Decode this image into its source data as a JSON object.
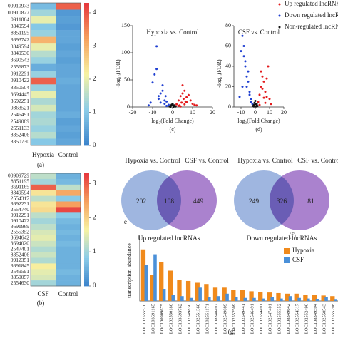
{
  "chart_data": [
    {
      "type": "heatmap",
      "caption": "(a)",
      "rows": [
        "00910973",
        "00910827",
        "0911864",
        "8349594",
        "8351195",
        "3693742",
        "8349594",
        "8349530",
        "3690543",
        "2556873",
        "0912291",
        "0910422",
        "8350504",
        "3694445",
        "3692251",
        "0363521",
        "2546491",
        "2549089",
        "2551133",
        "8352406",
        "8350730"
      ],
      "columns": [
        "Hypoxia",
        "Control"
      ],
      "values": [
        [
          0.8,
          3.9
        ],
        [
          1.3,
          0.3
        ],
        [
          2.0,
          0.4
        ],
        [
          1.0,
          0.3
        ],
        [
          1.2,
          0.5
        ],
        [
          3.0,
          0.5
        ],
        [
          2.0,
          0.4
        ],
        [
          1.5,
          0.5
        ],
        [
          1.2,
          0.4
        ],
        [
          0.6,
          0.5
        ],
        [
          1.2,
          0.5
        ],
        [
          3.9,
          0.6
        ],
        [
          1.2,
          0.5
        ],
        [
          2.0,
          0.5
        ],
        [
          1.4,
          0.5
        ],
        [
          1.8,
          0.5
        ],
        [
          1.3,
          0.6
        ],
        [
          1.4,
          0.4
        ],
        [
          1.2,
          0.5
        ],
        [
          1.5,
          0.4
        ],
        [
          1.0,
          0.5
        ]
      ],
      "zlim": [
        0,
        4.3
      ],
      "zticks": [
        0,
        1,
        2,
        3,
        4
      ],
      "colormap": [
        "#3d85cc",
        "#8ccde8",
        "#f7f3a3",
        "#f6a25f",
        "#e63a3f"
      ]
    },
    {
      "type": "heatmap",
      "caption": "(b)",
      "rows": [
        "00909729",
        "8351195",
        "3691165",
        "8349594",
        "2554317",
        "3692231",
        "2554740",
        "0912291",
        "0910422",
        "3691969",
        "2555352",
        "3694642",
        "3694020",
        "2547401",
        "8352406",
        "0912351",
        "3691845",
        "2549591",
        "8350057",
        "2554630"
      ],
      "columns": [
        "CSF",
        "Control"
      ],
      "values": [
        [
          1.2,
          0.5
        ],
        [
          1.0,
          0.6
        ],
        [
          3.0,
          1.2
        ],
        [
          1.8,
          2.4
        ],
        [
          1.2,
          0.8
        ],
        [
          1.8,
          2.5
        ],
        [
          1.9,
          3.2
        ],
        [
          1.2,
          0.8
        ],
        [
          1.0,
          0.6
        ],
        [
          1.2,
          0.5
        ],
        [
          1.4,
          0.6
        ],
        [
          1.5,
          0.5
        ],
        [
          1.3,
          0.6
        ],
        [
          1.1,
          0.5
        ],
        [
          1.3,
          0.5
        ],
        [
          1.1,
          0.5
        ],
        [
          1.7,
          0.5
        ],
        [
          1.5,
          0.6
        ],
        [
          1.4,
          0.5
        ],
        [
          1.0,
          0.5
        ]
      ],
      "zlim": [
        0,
        3.3
      ],
      "zticks": [
        0,
        1,
        2,
        3
      ],
      "colormap": [
        "#3d85cc",
        "#8ccde8",
        "#f7f3a3",
        "#f6a25f",
        "#e63a3f"
      ]
    },
    {
      "type": "scatter",
      "title": "Hypoxia vs. Control",
      "caption": "(c)",
      "xlabel": "log₂(Fold Change)",
      "ylabel": "-log₁₀(FDR)",
      "legend": true,
      "xlim": [
        -20,
        20
      ],
      "xticks": [
        -20,
        -10,
        0,
        10,
        20
      ],
      "ylim": [
        0,
        150
      ],
      "yticks": [
        0,
        50,
        100,
        150
      ],
      "series": [
        {
          "name": "Up regulated lncRNAs",
          "color": "#e31a1c",
          "x": [
            2,
            3,
            3.5,
            4,
            4.5,
            5,
            5.5,
            6,
            6.5,
            7,
            8,
            9,
            10,
            11,
            12,
            3,
            4,
            5,
            6,
            7
          ],
          "y": [
            5,
            12,
            3,
            20,
            8,
            25,
            15,
            30,
            10,
            18,
            22,
            12,
            6,
            4,
            3,
            2,
            1,
            40,
            5,
            9
          ]
        },
        {
          "name": "Down regulated lncRNAs",
          "color": "#1f3fd1",
          "x": [
            -2,
            -3,
            -3.5,
            -4,
            -5,
            -6,
            -7,
            -8,
            -9,
            -10,
            -11,
            -12,
            -8,
            -5,
            -4,
            -3,
            -6,
            -7
          ],
          "y": [
            4,
            10,
            20,
            6,
            30,
            25,
            15,
            112,
            60,
            45,
            8,
            3,
            70,
            40,
            12,
            2,
            8,
            20
          ]
        },
        {
          "name": "Non-regulated lncRNAs",
          "color": "#111111",
          "x": [
            -1.5,
            -1,
            -0.5,
            0,
            0.5,
            1,
            1.5,
            -1,
            0.5,
            1
          ],
          "y": [
            1,
            2,
            4,
            6,
            3,
            2,
            1,
            0.5,
            0.5,
            3
          ]
        }
      ]
    },
    {
      "type": "scatter",
      "title": "CSF vs. Control",
      "caption": "(d)",
      "xlabel": "log₂(Fold Change)",
      "ylabel": "-log₁₀(FDR)",
      "legend": false,
      "xlim": [
        -15,
        20
      ],
      "xticks": [
        -10,
        0,
        10,
        20
      ],
      "ylim": [
        0,
        80
      ],
      "yticks": [
        0,
        20,
        40,
        60,
        80
      ],
      "series": [
        {
          "color": "#e31a1c",
          "x": [
            2,
            3,
            4,
            5,
            6,
            7,
            8,
            9,
            10,
            11,
            3,
            4,
            5,
            6,
            7,
            8
          ],
          "y": [
            5,
            12,
            20,
            30,
            25,
            15,
            10,
            40,
            8,
            3,
            2,
            35,
            18,
            9,
            4,
            28
          ]
        },
        {
          "color": "#1f3fd1",
          "x": [
            -2,
            -3,
            -4,
            -5,
            -6,
            -7,
            -8,
            -9,
            -10,
            -11,
            -8,
            -7,
            -6,
            -5,
            -4,
            -3,
            -9
          ],
          "y": [
            3,
            8,
            15,
            25,
            30,
            40,
            50,
            70,
            55,
            10,
            60,
            45,
            20,
            35,
            12,
            5,
            20
          ]
        },
        {
          "color": "#111111",
          "x": [
            -1.5,
            -1,
            -0.5,
            0,
            0.5,
            1,
            1.5,
            -1,
            0.5,
            1
          ],
          "y": [
            1,
            2,
            4,
            6,
            3,
            2,
            1,
            0.5,
            0.5,
            3
          ]
        }
      ]
    },
    {
      "type": "venn",
      "subtitle": "Up regulated lncRNAs",
      "caption": "e",
      "sets": [
        {
          "name": "Hypoxia vs. Control",
          "color": "#8ea9db"
        },
        {
          "name": "CSF vs. Control",
          "color": "#9b6cc6"
        }
      ],
      "values": [
        202,
        108,
        449
      ]
    },
    {
      "type": "venn",
      "subtitle": "Down regulated lncRNAs",
      "caption": "(f)",
      "sets": [
        {
          "name": "Hypoxia vs. Control",
          "color": "#8ea9db"
        },
        {
          "name": "CSF vs. Control",
          "color": "#9b6cc6"
        }
      ],
      "values": [
        249,
        326,
        81
      ]
    },
    {
      "type": "bar",
      "caption": "(g)",
      "ylabel": "transcription abundance",
      "ylim": [
        0,
        100
      ],
      "categories": [
        "LOC102555570",
        "LOC103691165",
        "LOC100909675",
        "LOC102550180",
        "LOC103693762",
        "LOC102549830",
        "LOC102551366",
        "LOC102551171",
        "LOC108348497",
        "LOC102549089",
        "LOC102552509",
        "LOC102549441",
        "LOC102546491",
        "LOC102554491",
        "LOC102547401",
        "LOC102555352",
        "LOC108349642",
        "LOC102554317",
        "LOC102552490",
        "LOC108349594",
        "LOC102550543",
        "LOC102555798"
      ],
      "series": [
        {
          "name": "Hypoxia",
          "color": "#f08a1c",
          "values": [
            85,
            43,
            64,
            50,
            35,
            33,
            30,
            28,
            22,
            22,
            18,
            18,
            16,
            15,
            14,
            13,
            12,
            12,
            10,
            10,
            9,
            8
          ]
        },
        {
          "name": "CSF",
          "color": "#4a90d9",
          "values": [
            60,
            77,
            20,
            10,
            8,
            5,
            22,
            6,
            8,
            12,
            6,
            5,
            5,
            4,
            6,
            4,
            8,
            5,
            4,
            3,
            6,
            2
          ]
        }
      ]
    }
  ]
}
